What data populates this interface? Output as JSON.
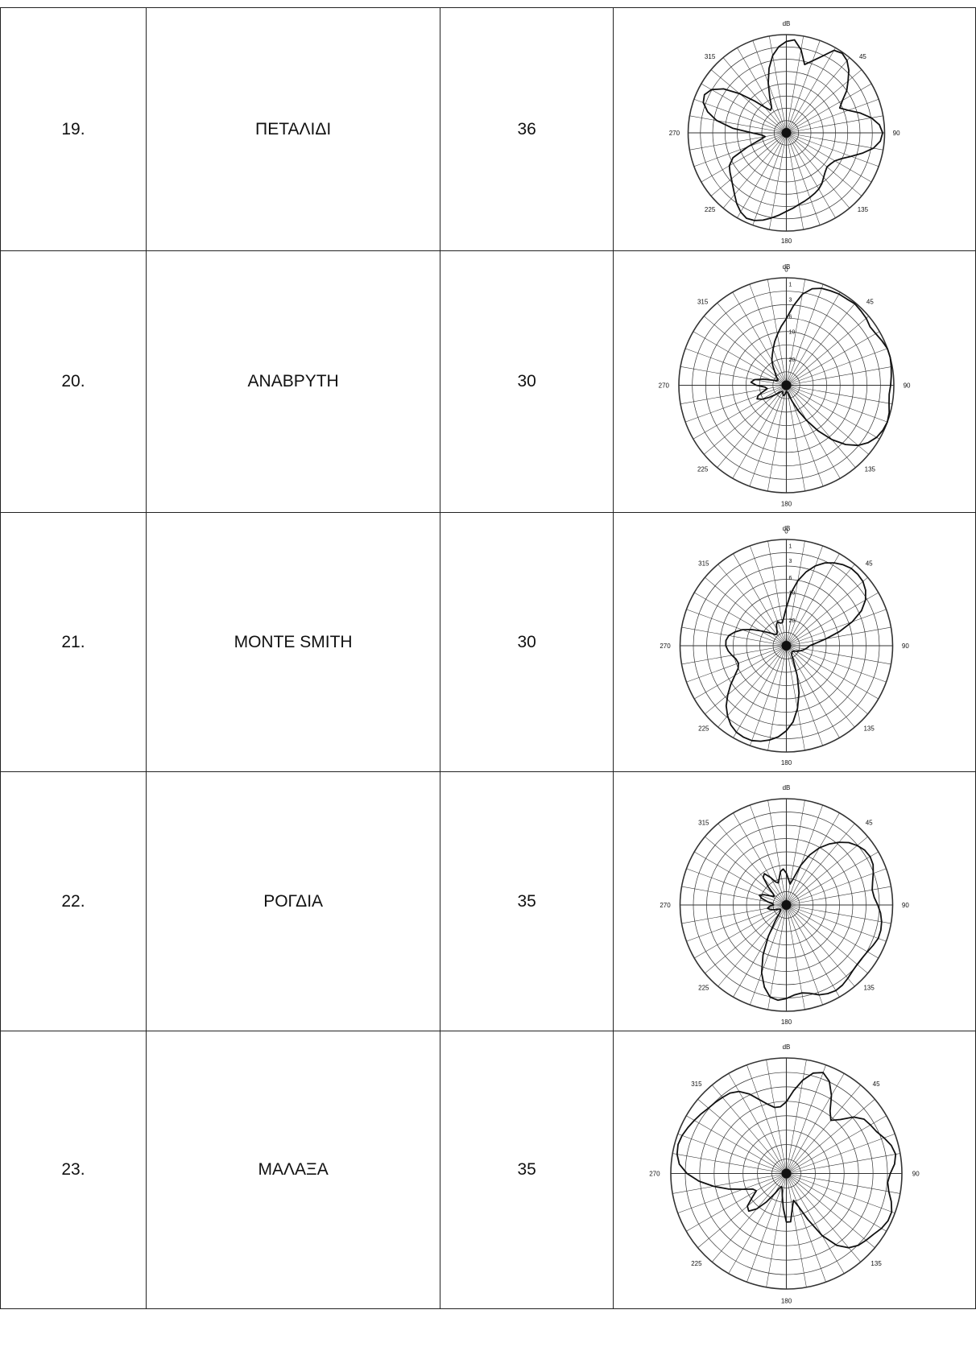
{
  "table": {
    "rows": [
      {
        "index": "19.",
        "name": "ΠΕΤΑΛΙΔΙ",
        "value": "36",
        "pattern": {
          "unit_label": "dB",
          "angle_labels": {
            "top": "",
            "315": "315",
            "45": "45",
            "90": "90",
            "135": "135",
            "180": "180",
            "225": "225",
            "270": "270"
          },
          "db_ticks": [],
          "radii": [
            0.93,
            0.95,
            0.86,
            0.72,
            0.78,
            0.86,
            0.97,
            0.99,
            0.96,
            0.9,
            0.82,
            0.75,
            0.66,
            0.6,
            0.67,
            0.78,
            0.88,
            0.95,
            0.98,
            0.96,
            0.9,
            0.8,
            0.7,
            0.62,
            0.57,
            0.55,
            0.54,
            0.56,
            0.59,
            0.63,
            0.66,
            0.68,
            0.7,
            0.72,
            0.74,
            0.77,
            0.8,
            0.84,
            0.88,
            0.92,
            0.95,
            0.96,
            0.93,
            0.88,
            0.82,
            0.77,
            0.73,
            0.7,
            0.67,
            0.6,
            0.42,
            0.28,
            0.22,
            0.25,
            0.35,
            0.55,
            0.72,
            0.83,
            0.9,
            0.92,
            0.88,
            0.78,
            0.62,
            0.46,
            0.34,
            0.28,
            0.3,
            0.4,
            0.54,
            0.68,
            0.8,
            0.88
          ]
        }
      },
      {
        "index": "20.",
        "name": "ΑΝΑΒΡΥΤΗ",
        "value": "30",
        "pattern": {
          "unit_label": "dB",
          "angle_labels": {
            "top": "0",
            "315": "315",
            "45": "45",
            "90": "90",
            "135": "135",
            "180": "180",
            "225": "225",
            "270": "270"
          },
          "db_ticks": [
            "1",
            "3",
            "6",
            "10",
            "20"
          ],
          "radii": [
            0.62,
            0.74,
            0.86,
            0.93,
            0.96,
            0.97,
            0.98,
            0.98,
            0.99,
            0.98,
            0.97,
            0.95,
            0.96,
            0.98,
            1.0,
            1.0,
            0.99,
            0.98,
            0.97,
            0.96,
            0.97,
            0.99,
            1.0,
            0.99,
            0.97,
            0.93,
            0.87,
            0.78,
            0.66,
            0.52,
            0.38,
            0.26,
            0.16,
            0.1,
            0.07,
            0.06,
            0.06,
            0.07,
            0.09,
            0.1,
            0.09,
            0.08,
            0.07,
            0.07,
            0.08,
            0.1,
            0.14,
            0.2,
            0.26,
            0.3,
            0.28,
            0.22,
            0.18,
            0.2,
            0.28,
            0.33,
            0.3,
            0.22,
            0.14,
            0.1,
            0.09,
            0.1,
            0.12,
            0.14,
            0.17,
            0.22,
            0.27,
            0.31,
            0.36,
            0.42,
            0.48,
            0.55
          ]
        }
      },
      {
        "index": "21.",
        "name": "MONTE SMITH",
        "value": "30",
        "pattern": {
          "unit_label": "dB",
          "angle_labels": {
            "top": "0",
            "315": "315",
            "45": "45",
            "90": "90",
            "135": "135",
            "180": "180",
            "225": "225",
            "270": "270"
          },
          "db_ticks": [
            "1",
            "3",
            "6",
            "10",
            "20"
          ],
          "radii": [
            0.36,
            0.5,
            0.62,
            0.72,
            0.8,
            0.86,
            0.9,
            0.93,
            0.95,
            0.95,
            0.94,
            0.91,
            0.86,
            0.78,
            0.66,
            0.52,
            0.38,
            0.28,
            0.22,
            0.2,
            0.18,
            0.16,
            0.14,
            0.12,
            0.1,
            0.09,
            0.08,
            0.08,
            0.08,
            0.09,
            0.1,
            0.16,
            0.3,
            0.46,
            0.6,
            0.72,
            0.8,
            0.86,
            0.9,
            0.93,
            0.95,
            0.95,
            0.94,
            0.91,
            0.86,
            0.8,
            0.72,
            0.64,
            0.56,
            0.5,
            0.48,
            0.49,
            0.52,
            0.55,
            0.57,
            0.57,
            0.55,
            0.5,
            0.44,
            0.36,
            0.28,
            0.22,
            0.18,
            0.15,
            0.14,
            0.15,
            0.18,
            0.22,
            0.24,
            0.22,
            0.22,
            0.27
          ]
        }
      },
      {
        "index": "22.",
        "name": "ΡΟΓΔΙΑ",
        "value": "35",
        "pattern": {
          "unit_label": "dB",
          "angle_labels": {
            "top": "",
            "315": "315",
            "45": "45",
            "90": "90",
            "135": "135",
            "180": "180",
            "225": "225",
            "270": "270"
          },
          "db_ticks": [],
          "radii": [
            0.3,
            0.24,
            0.2,
            0.26,
            0.4,
            0.52,
            0.62,
            0.7,
            0.77,
            0.83,
            0.87,
            0.9,
            0.91,
            0.9,
            0.87,
            0.84,
            0.82,
            0.83,
            0.86,
            0.89,
            0.91,
            0.92,
            0.92,
            0.9,
            0.88,
            0.87,
            0.87,
            0.88,
            0.9,
            0.92,
            0.93,
            0.92,
            0.9,
            0.86,
            0.84,
            0.85,
            0.88,
            0.9,
            0.88,
            0.8,
            0.68,
            0.52,
            0.34,
            0.18,
            0.1,
            0.08,
            0.07,
            0.07,
            0.08,
            0.1,
            0.13,
            0.16,
            0.18,
            0.16,
            0.12,
            0.13,
            0.18,
            0.24,
            0.27,
            0.23,
            0.17,
            0.14,
            0.16,
            0.24,
            0.34,
            0.36,
            0.3,
            0.24,
            0.22,
            0.26,
            0.32,
            0.34
          ]
        }
      },
      {
        "index": "23.",
        "name": "ΜΑΛΑΞΑ",
        "value": "35",
        "pattern": {
          "unit_label": "dB",
          "angle_labels": {
            "top": "",
            "315": "315",
            "45": "45",
            "90": "90",
            "135": "135",
            "180": "180",
            "225": "225",
            "270": "270"
          },
          "db_ticks": [],
          "radii": [
            0.62,
            0.72,
            0.82,
            0.9,
            0.93,
            0.88,
            0.78,
            0.66,
            0.6,
            0.66,
            0.76,
            0.82,
            0.84,
            0.86,
            0.9,
            0.94,
            0.96,
            0.94,
            0.9,
            0.88,
            0.9,
            0.94,
            0.97,
            0.97,
            0.95,
            0.92,
            0.9,
            0.88,
            0.84,
            0.76,
            0.62,
            0.44,
            0.3,
            0.24,
            0.3,
            0.42,
            0.42,
            0.3,
            0.2,
            0.14,
            0.12,
            0.14,
            0.2,
            0.3,
            0.4,
            0.46,
            0.44,
            0.36,
            0.3,
            0.32,
            0.4,
            0.52,
            0.64,
            0.76,
            0.86,
            0.93,
            0.96,
            0.97,
            0.96,
            0.94,
            0.92,
            0.9,
            0.88,
            0.87,
            0.86,
            0.85,
            0.82,
            0.76,
            0.68,
            0.62,
            0.58,
            0.58
          ]
        }
      }
    ]
  }
}
